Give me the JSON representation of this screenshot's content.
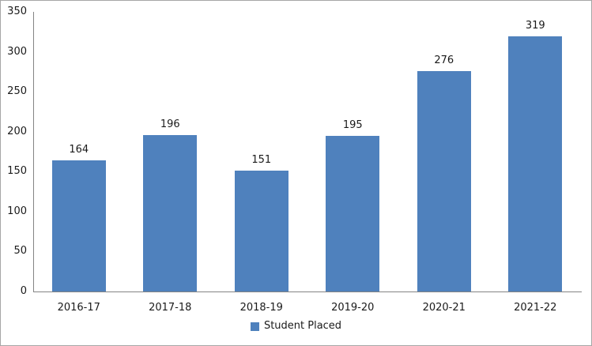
{
  "chart_data": {
    "type": "bar",
    "title": "",
    "categories": [
      "2016-17",
      "2017-18",
      "2018-19",
      "2019-20",
      "2020-21",
      "2021-22"
    ],
    "series": [
      {
        "name": "Student Placed",
        "values": [
          164,
          196,
          151,
          195,
          276,
          319
        ]
      }
    ],
    "data_labels": [
      164,
      196,
      151,
      195,
      276,
      319
    ],
    "y_ticks": [
      0,
      50,
      100,
      150,
      200,
      250,
      300,
      350
    ],
    "ylim": [
      0,
      350
    ],
    "grid": false,
    "legend_position": "bottom",
    "colors": {
      "bar": "#4F81BD",
      "axis_line": "#848484",
      "text": "#1a1a1a",
      "border": "#a6a6a6",
      "background": "#ffffff"
    }
  }
}
